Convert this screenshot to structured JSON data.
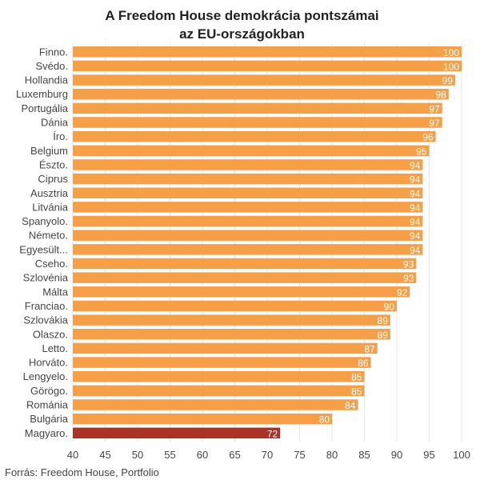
{
  "title_line1": "A Freedom House demokrácia pontszámai",
  "title_line2": "az EU-országokban",
  "source": "Forrás: Freedom House, Portfolio",
  "colors": {
    "bar": "#F5A048",
    "highlight": "#A83326",
    "grid": "#e6e6e6",
    "label": "#444444",
    "value": "#ffffff"
  },
  "chart_data": {
    "type": "bar",
    "orientation": "horizontal",
    "categories": [
      "Finno.",
      "Svédo.",
      "Hollandia",
      "Luxemburg",
      "Portugália",
      "Dánia",
      "Íro.",
      "Belgium",
      "Észto.",
      "Ciprus",
      "Ausztria",
      "Litvánia",
      "Spanyolo.",
      "Németo.",
      "Egyesült...",
      "Cseho.",
      "Szlovénia",
      "Málta",
      "Franciao.",
      "Szlovákia",
      "Olaszo.",
      "Letto.",
      "Horváto.",
      "Lengyelo.",
      "Görögo.",
      "Románia",
      "Bulgária",
      "Magyaro."
    ],
    "values": [
      100,
      100,
      99,
      98,
      97,
      97,
      96,
      95,
      94,
      94,
      94,
      94,
      94,
      94,
      94,
      93,
      93,
      92,
      90,
      89,
      89,
      87,
      86,
      85,
      85,
      84,
      80,
      72
    ],
    "highlight_index": 27,
    "xlim": [
      40,
      100
    ],
    "xticks": [
      40,
      45,
      50,
      55,
      60,
      65,
      70,
      75,
      80,
      85,
      90,
      95,
      100
    ],
    "grid": true,
    "title": "A Freedom House demokrácia pontszámai az EU-országokban",
    "xlabel": "",
    "ylabel": ""
  }
}
